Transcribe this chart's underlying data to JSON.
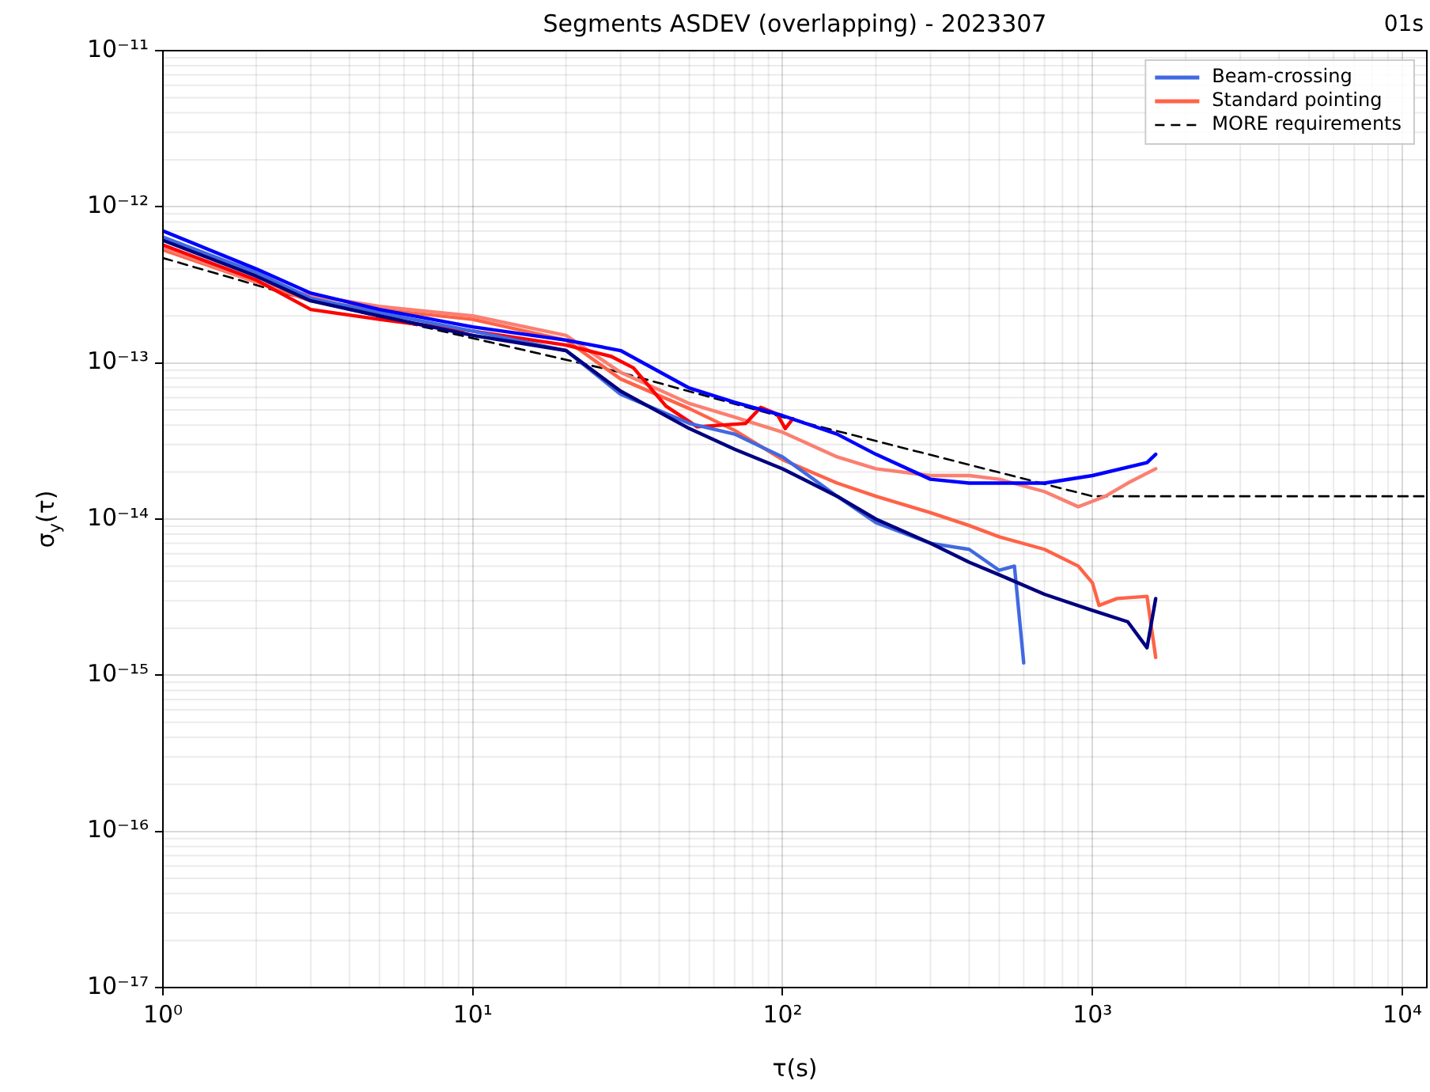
{
  "chart_data": {
    "type": "line",
    "title": "Segments ASDEV (overlapping) - 2023307",
    "annotations": [
      "01s"
    ],
    "xlabel": "τ(s)",
    "ylabel": "σ$_{y}$(τ)",
    "log": "xy",
    "grid": true,
    "legend": "top right",
    "xlim": [
      1,
      12000
    ],
    "ylim": [
      1e-17,
      1e-11
    ],
    "xticks": [
      {
        "value": 1,
        "label": "10⁰"
      },
      {
        "value": 10,
        "label": "10¹"
      },
      {
        "value": 100,
        "label": "10²"
      },
      {
        "value": 1000,
        "label": "10³"
      },
      {
        "value": 10000,
        "label": "10⁴"
      }
    ],
    "yticks": [
      {
        "value": 1e-17,
        "label": "10⁻¹⁷"
      },
      {
        "value": 1e-16,
        "label": "10⁻¹⁶"
      },
      {
        "value": 1e-15,
        "label": "10⁻¹⁵"
      },
      {
        "value": 1e-14,
        "label": "10⁻¹⁴"
      },
      {
        "value": 1e-13,
        "label": "10⁻¹³"
      },
      {
        "value": 1e-12,
        "label": "10⁻¹²"
      },
      {
        "value": 1e-11,
        "label": "10⁻¹¹"
      }
    ],
    "series": [
      {
        "color": "#0000ff",
        "x": [
          1,
          2,
          3,
          5,
          10,
          20,
          30,
          50,
          70,
          100,
          150,
          200,
          300,
          400,
          500,
          700,
          1000,
          1500,
          1600
        ],
        "values": [
          7e-13,
          4e-13,
          2.8e-13,
          2.2e-13,
          1.7e-13,
          1.4e-13,
          1.2e-13,
          6.9e-14,
          5.6e-14,
          4.6e-14,
          3.5e-14,
          2.6e-14,
          1.8e-14,
          1.7e-14,
          1.7e-14,
          1.7e-14,
          1.9e-14,
          2.3e-14,
          2.6e-14
        ]
      },
      {
        "color": "#000080",
        "x": [
          1,
          2,
          3,
          5,
          10,
          20,
          30,
          50,
          70,
          100,
          150,
          200,
          300,
          400,
          500,
          700,
          1000,
          1300,
          1500,
          1600
        ],
        "values": [
          6.1e-13,
          3.6e-13,
          2.5e-13,
          2e-13,
          1.5e-13,
          1.2e-13,
          6.6e-14,
          3.8e-14,
          2.8e-14,
          2.1e-14,
          1.4e-14,
          1e-14,
          7e-15,
          5.3e-15,
          4.4e-15,
          3.3e-15,
          2.6e-15,
          2.2e-15,
          1.5e-15,
          3.1e-15
        ]
      },
      {
        "name": "Beam-crossing",
        "color": "#4169e1",
        "x": [
          1,
          2,
          3,
          5,
          10,
          20,
          30,
          50,
          70,
          100,
          150,
          200,
          300,
          400,
          500,
          560,
          600
        ],
        "values": [
          6.4e-13,
          3.8e-13,
          2.6e-13,
          2.1e-13,
          1.6e-13,
          1.2e-13,
          6.3e-14,
          4.1e-14,
          3.5e-14,
          2.5e-14,
          1.4e-14,
          9.5e-15,
          7e-15,
          6.4e-15,
          4.7e-15,
          5e-15,
          1.2e-15
        ]
      },
      {
        "color": "#ff0000",
        "x": [
          1,
          2,
          3,
          5,
          10,
          20,
          28,
          33,
          42,
          53,
          76,
          85,
          96,
          102,
          108
        ],
        "values": [
          5.7e-13,
          3.4e-13,
          2.2e-13,
          1.9e-13,
          1.6e-13,
          1.3e-13,
          1.1e-13,
          9.3e-14,
          5.3e-14,
          3.9e-14,
          4.1e-14,
          5.2e-14,
          4.7e-14,
          3.8e-14,
          4.4e-14
        ]
      },
      {
        "color": "#fa8072",
        "x": [
          1,
          2,
          3,
          5,
          10,
          20,
          30,
          50,
          70,
          100,
          150,
          200,
          300,
          400,
          500,
          700,
          900,
          1000,
          1100,
          1300,
          1600
        ],
        "values": [
          5.5e-13,
          3.3e-13,
          2.7e-13,
          2.3e-13,
          2e-13,
          1.5e-13,
          8.7e-14,
          5.5e-14,
          4.5e-14,
          3.6e-14,
          2.5e-14,
          2.1e-14,
          1.9e-14,
          1.9e-14,
          1.8e-14,
          1.5e-14,
          1.2e-14,
          1.3e-14,
          1.4e-14,
          1.7e-14,
          2.1e-14
        ]
      },
      {
        "name": "Standard pointing",
        "color": "#ff6347",
        "x": [
          1,
          2,
          3,
          5,
          10,
          20,
          30,
          50,
          70,
          100,
          150,
          200,
          300,
          400,
          500,
          700,
          900,
          1000,
          1050,
          1200,
          1500,
          1600
        ],
        "values": [
          5.3e-13,
          3.3e-13,
          2.5e-13,
          2.2e-13,
          1.9e-13,
          1.4e-13,
          7.9e-14,
          5.1e-14,
          3.7e-14,
          2.4e-14,
          1.7e-14,
          1.4e-14,
          1.1e-14,
          9.1e-15,
          7.7e-15,
          6.4e-15,
          5e-15,
          3.9e-15,
          2.8e-15,
          3.1e-15,
          3.2e-15,
          1.3e-15
        ]
      },
      {
        "name": "MORE requirements",
        "color": "#000000",
        "line_style": "dashed",
        "x": [
          1,
          3,
          30,
          100,
          1000,
          12000
        ],
        "values": [
          4.7e-13,
          2.5e-13,
          8.7e-14,
          4.5e-14,
          1.4e-14,
          1.4e-14
        ]
      }
    ]
  }
}
